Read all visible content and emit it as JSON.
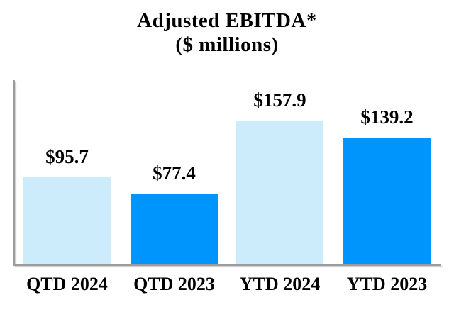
{
  "title": {
    "line1": "Adjusted EBITDA*",
    "line2": "($ millions)"
  },
  "chart_data": {
    "type": "bar",
    "title": "Adjusted EBITDA*",
    "subtitle": "($ millions)",
    "categories": [
      "QTD 2024",
      "QTD 2023",
      "YTD 2024",
      "YTD 2023"
    ],
    "values": [
      95.7,
      77.4,
      157.9,
      139.2
    ],
    "value_labels": [
      "$95.7",
      "$77.4",
      "$157.9",
      "$139.2"
    ],
    "bar_colors": [
      "#CCEBFB",
      "#0095FC",
      "#CCEBFB",
      "#0095FC"
    ],
    "xlabel": "",
    "ylabel": "",
    "ylim": [
      0,
      165
    ],
    "grid": false,
    "legend": false,
    "axis_color": "#9B9B9B",
    "axis_shadow_color": "#CDCDCD",
    "text_color": "#000000",
    "background_color": "#FFFFFF"
  }
}
